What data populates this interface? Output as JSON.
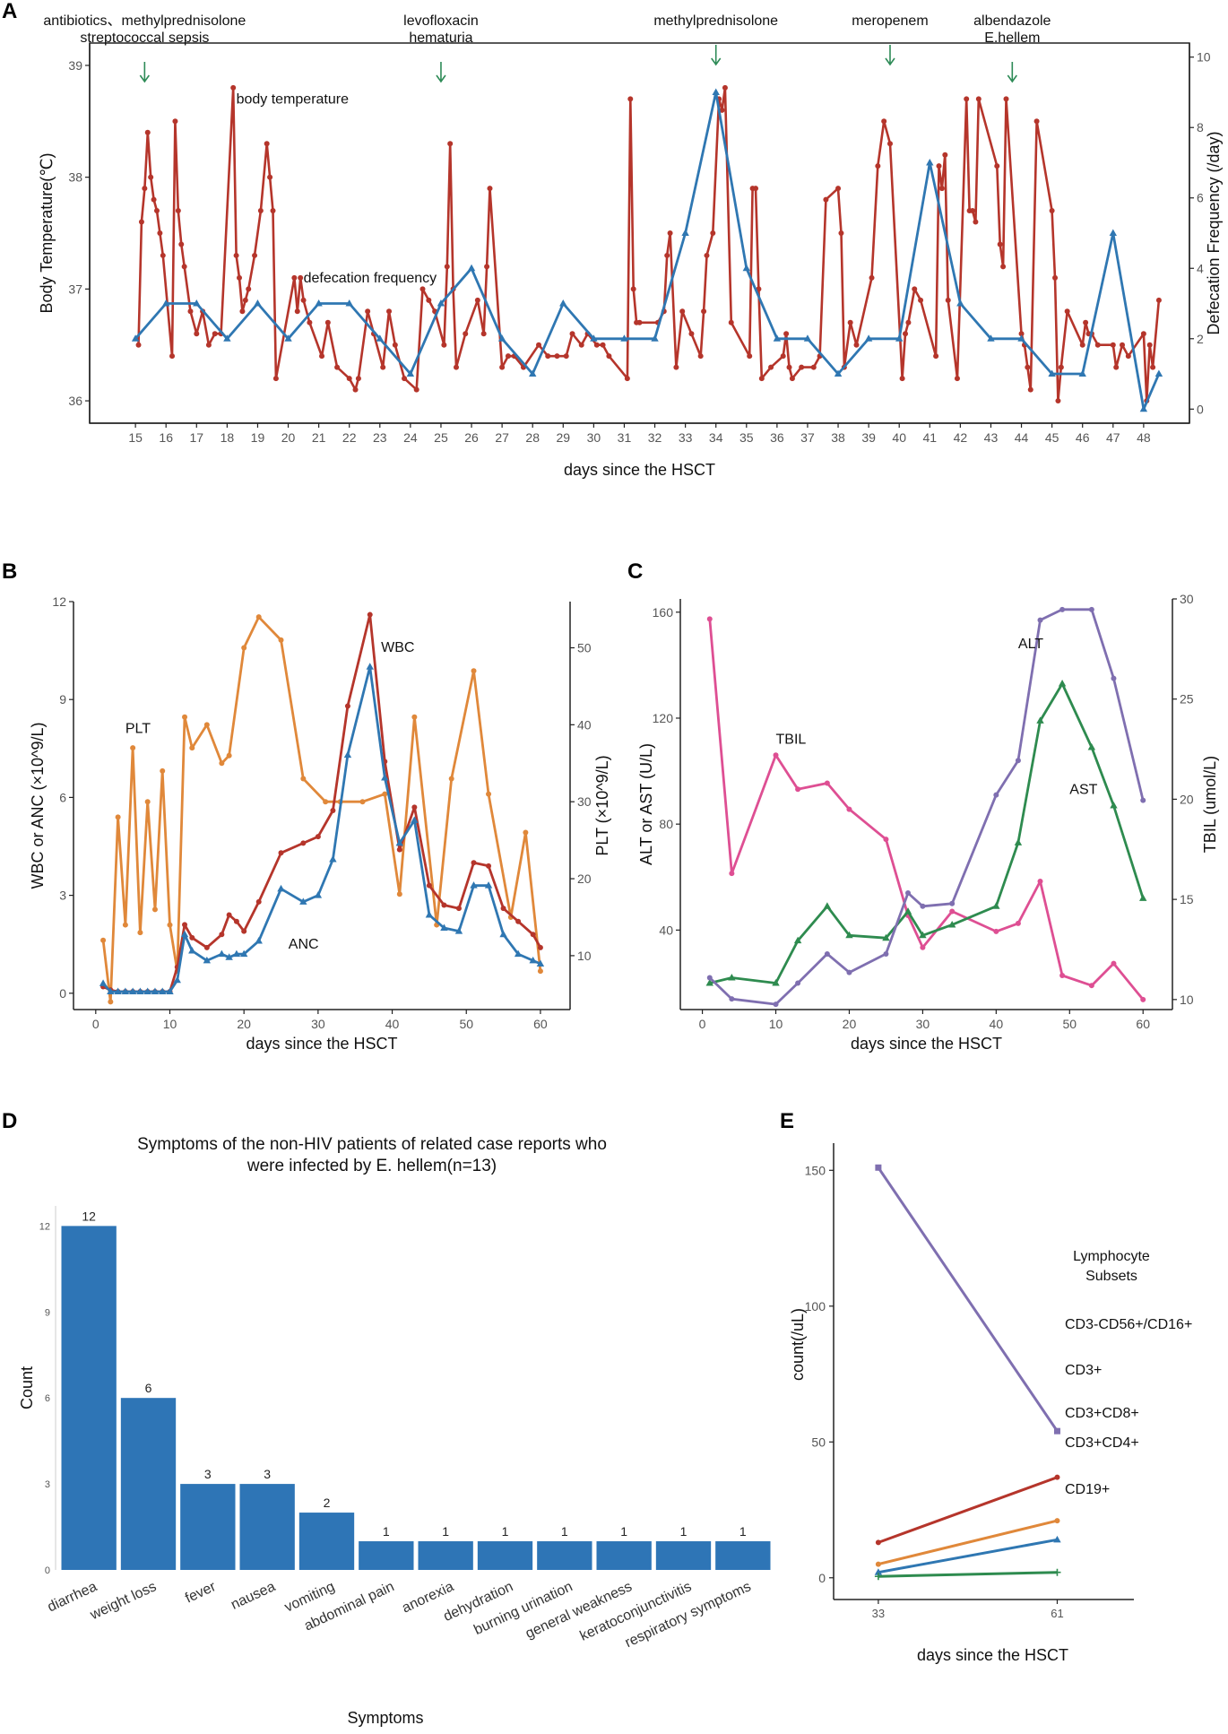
{
  "figure": {
    "colors": {
      "red": "#b5352b",
      "blue": "#2f77b2",
      "orange": "#e0883a",
      "pink": "#de4f93",
      "purple": "#7f6fb0",
      "green": "#2e8b4f",
      "bar": "#2e75b6"
    }
  },
  "chart_data": [
    {
      "panel": "A",
      "type": "line",
      "xlabel": "days since the HSCT",
      "ylabel": "Body Temperature(℃)",
      "y2label": "Defecation Frequency (/day)",
      "xlim": [
        13.5,
        49.5
      ],
      "ylim": [
        35.8,
        39.2
      ],
      "y2lim": [
        -0.4,
        10.4
      ],
      "xticks": [
        15,
        16,
        17,
        18,
        19,
        20,
        21,
        22,
        23,
        24,
        25,
        26,
        27,
        28,
        29,
        30,
        31,
        32,
        33,
        34,
        35,
        36,
        37,
        38,
        39,
        40,
        41,
        42,
        43,
        44,
        45,
        46,
        47,
        48
      ],
      "yticks": [
        36,
        37,
        38,
        39
      ],
      "y2ticks": [
        0,
        2,
        4,
        6,
        8,
        10
      ],
      "annotations": [
        {
          "lines": [
            "antibiotics、methylprednisolone",
            "streptococcal sepsis"
          ],
          "x": 15.3
        },
        {
          "lines": [
            "levofloxacin",
            "hematuria"
          ],
          "x": 25.0
        },
        {
          "lines": [
            "methylprednisolone"
          ],
          "x": 34.0
        },
        {
          "lines": [
            "meropenem"
          ],
          "x": 39.7
        },
        {
          "lines": [
            "albendazole",
            "E.hellem"
          ],
          "x": 43.7
        }
      ],
      "series": [
        {
          "name": "body temperature",
          "label_at": [
            18.3,
            38.7
          ],
          "axis": "left",
          "x": [
            15.1,
            15.2,
            15.3,
            15.4,
            15.5,
            15.6,
            15.7,
            15.8,
            15.9,
            16.2,
            16.3,
            16.4,
            16.5,
            16.6,
            16.8,
            17.0,
            17.2,
            17.4,
            17.6,
            17.8,
            18.2,
            18.3,
            18.4,
            18.5,
            18.6,
            18.7,
            18.9,
            19.1,
            19.3,
            19.4,
            19.5,
            19.6,
            20.2,
            20.3,
            20.4,
            20.5,
            20.7,
            21.1,
            21.3,
            21.6,
            22.0,
            22.2,
            22.3,
            22.6,
            22.8,
            23.1,
            23.3,
            23.5,
            23.8,
            24.2,
            24.4,
            24.6,
            24.8,
            25.1,
            25.2,
            25.3,
            25.4,
            25.5,
            25.8,
            26.2,
            26.4,
            26.5,
            26.6,
            27.0,
            27.2,
            27.4,
            27.7,
            28.2,
            28.5,
            28.8,
            29.1,
            29.3,
            29.6,
            29.8,
            30.1,
            30.3,
            30.5,
            31.1,
            31.2,
            31.3,
            31.4,
            31.5,
            32.1,
            32.3,
            32.4,
            32.5,
            32.7,
            32.9,
            33.2,
            33.5,
            33.6,
            33.7,
            33.9,
            34.1,
            34.2,
            34.3,
            34.5,
            35.1,
            35.2,
            35.3,
            35.4,
            35.5,
            35.8,
            36.2,
            36.3,
            36.4,
            36.5,
            36.8,
            37.2,
            37.4,
            37.6,
            38.0,
            38.1,
            38.2,
            38.4,
            38.6,
            39.1,
            39.3,
            39.5,
            39.7,
            40.1,
            40.2,
            40.3,
            40.5,
            40.7,
            41.2,
            41.3,
            41.4,
            41.5,
            41.6,
            41.9,
            42.2,
            42.3,
            42.4,
            42.5,
            42.6,
            43.2,
            43.3,
            43.4,
            43.5,
            44.0,
            44.1,
            44.2,
            44.3,
            44.5,
            45.0,
            45.1,
            45.2,
            45.3,
            45.5,
            46.0,
            46.1,
            46.2,
            46.3,
            46.5,
            47.0,
            47.1,
            47.3,
            47.5,
            48.0,
            48.1,
            48.2,
            48.3,
            48.5
          ],
          "y": [
            36.5,
            37.6,
            37.9,
            38.4,
            38.0,
            37.8,
            37.7,
            37.5,
            37.3,
            36.4,
            38.5,
            37.7,
            37.4,
            37.2,
            36.8,
            36.6,
            36.8,
            36.5,
            36.6,
            36.6,
            38.8,
            37.3,
            37.1,
            36.8,
            36.9,
            37.0,
            37.3,
            37.7,
            38.3,
            38.0,
            37.7,
            36.2,
            37.1,
            36.8,
            37.1,
            36.9,
            36.7,
            36.4,
            36.7,
            36.3,
            36.2,
            36.1,
            36.2,
            36.8,
            36.6,
            36.3,
            36.8,
            36.5,
            36.2,
            36.1,
            37.0,
            36.9,
            36.8,
            36.5,
            37.2,
            38.3,
            37.0,
            36.3,
            36.6,
            36.9,
            36.6,
            37.2,
            37.9,
            36.3,
            36.4,
            36.4,
            36.3,
            36.5,
            36.4,
            36.4,
            36.4,
            36.6,
            36.5,
            36.6,
            36.5,
            36.5,
            36.4,
            36.2,
            38.7,
            37.0,
            36.7,
            36.7,
            36.7,
            36.8,
            37.3,
            37.5,
            36.3,
            36.8,
            36.6,
            36.4,
            36.8,
            37.3,
            37.5,
            38.7,
            38.6,
            38.8,
            36.7,
            36.4,
            37.9,
            37.9,
            37.0,
            36.2,
            36.3,
            36.4,
            36.6,
            36.3,
            36.2,
            36.3,
            36.3,
            36.4,
            37.8,
            37.9,
            37.5,
            36.3,
            36.7,
            36.5,
            37.1,
            38.1,
            38.5,
            38.3,
            36.2,
            36.6,
            36.7,
            37.0,
            36.9,
            36.4,
            38.1,
            37.9,
            38.2,
            36.9,
            36.2,
            38.7,
            37.7,
            37.7,
            37.6,
            38.7,
            38.1,
            37.4,
            37.2,
            38.7,
            36.6,
            36.5,
            36.3,
            36.1,
            38.5,
            37.7,
            37.1,
            36.0,
            36.3,
            36.8,
            36.5,
            36.7,
            36.6,
            36.6,
            36.5,
            36.5,
            36.3,
            36.5,
            36.4,
            36.6,
            36.0,
            36.5,
            36.3,
            36.9
          ]
        },
        {
          "name": "defecation frequency",
          "label_at": [
            20.5,
            37.1
          ],
          "axis": "right",
          "x": [
            15,
            16,
            17,
            18,
            19,
            20,
            21,
            22,
            23,
            24,
            25,
            26,
            27,
            28,
            29,
            30,
            31,
            32,
            33,
            34,
            35,
            36,
            37,
            38,
            39,
            40,
            41,
            42,
            43,
            44,
            45,
            46,
            47,
            48,
            48.5
          ],
          "y": [
            2,
            3,
            3,
            2,
            3,
            2,
            3,
            3,
            2,
            1,
            3,
            4,
            2,
            1,
            3,
            2,
            2,
            2,
            5,
            9,
            4,
            2,
            2,
            1,
            2,
            2,
            7,
            3,
            2,
            2,
            1,
            1,
            5,
            0,
            1
          ]
        }
      ]
    },
    {
      "panel": "B",
      "type": "line",
      "xlabel": "days since the HSCT",
      "ylabel": "WBC or ANC (×10^9/L)",
      "y2label": "PLT (×10^9/L)",
      "xlim": [
        -3,
        64
      ],
      "ylim": [
        -0.5,
        12
      ],
      "y2lim": [
        3,
        56
      ],
      "xticks": [
        0,
        10,
        20,
        30,
        40,
        50,
        60
      ],
      "yticks": [
        0,
        3,
        6,
        9,
        12
      ],
      "y2ticks": [
        10,
        20,
        30,
        40,
        50
      ],
      "series": [
        {
          "name": "WBC",
          "label_at": [
            38.5,
            10.6
          ],
          "axis": "left",
          "x": [
            1,
            2,
            3,
            4,
            5,
            6,
            7,
            8,
            9,
            10,
            11,
            12,
            13,
            15,
            17,
            18,
            19,
            20,
            22,
            25,
            28,
            30,
            32,
            34,
            37,
            39,
            41,
            43,
            45,
            47,
            49,
            51,
            53,
            55,
            57,
            59,
            60
          ],
          "y": [
            0.2,
            0.1,
            0.05,
            0.05,
            0.05,
            0.05,
            0.05,
            0.05,
            0.05,
            0.05,
            0.8,
            2.1,
            1.7,
            1.4,
            1.8,
            2.4,
            2.2,
            1.9,
            2.8,
            4.3,
            4.6,
            4.8,
            5.6,
            8.8,
            11.6,
            7.1,
            4.4,
            5.7,
            3.3,
            2.7,
            2.6,
            4.0,
            3.9,
            2.6,
            2.2,
            1.8,
            1.4
          ]
        },
        {
          "name": "ANC",
          "label_at": [
            26,
            1.5
          ],
          "axis": "left",
          "x": [
            1,
            2,
            3,
            4,
            5,
            6,
            7,
            8,
            9,
            10,
            11,
            12,
            13,
            15,
            17,
            18,
            19,
            20,
            22,
            25,
            28,
            30,
            32,
            34,
            37,
            39,
            41,
            43,
            45,
            47,
            49,
            51,
            53,
            55,
            57,
            59,
            60
          ],
          "y": [
            0.3,
            0.05,
            0.05,
            0.05,
            0.05,
            0.05,
            0.05,
            0.05,
            0.05,
            0.05,
            0.4,
            1.8,
            1.3,
            1.0,
            1.2,
            1.1,
            1.2,
            1.2,
            1.6,
            3.2,
            2.8,
            3.0,
            4.1,
            7.3,
            10.0,
            6.6,
            4.6,
            5.3,
            2.4,
            2.0,
            1.9,
            3.3,
            3.3,
            1.8,
            1.2,
            1.0,
            0.9
          ]
        },
        {
          "name": "PLT",
          "label_at": [
            4,
            39.5
          ],
          "axis": "right",
          "x": [
            1,
            2,
            3,
            4,
            5,
            6,
            7,
            8,
            9,
            10,
            11,
            12,
            13,
            15,
            17,
            18,
            20,
            22,
            25,
            28,
            31,
            33,
            36,
            39,
            41,
            43,
            46,
            48,
            51,
            53,
            56,
            58,
            60
          ],
          "y": [
            12,
            4,
            28,
            14,
            37,
            13,
            30,
            16,
            34,
            14,
            8,
            41,
            37,
            40,
            35,
            36,
            50,
            54,
            51,
            33,
            30,
            30,
            30,
            31,
            18,
            41,
            14,
            33,
            47,
            31,
            15,
            26,
            8
          ]
        }
      ]
    },
    {
      "panel": "C",
      "type": "line",
      "xlabel": "days since the HSCT",
      "ylabel": "ALT or AST (U/L)",
      "y2label": "TBIL (umol/L)",
      "xlim": [
        -3,
        64
      ],
      "ylim": [
        10,
        165
      ],
      "y2lim": [
        9.5,
        30
      ],
      "xticks": [
        0,
        10,
        20,
        30,
        40,
        50,
        60
      ],
      "yticks": [
        40,
        80,
        120,
        160
      ],
      "y2ticks": [
        10,
        15,
        20,
        25,
        30
      ],
      "series": [
        {
          "name": "TBIL",
          "label_at": [
            10,
            23
          ],
          "axis": "right",
          "x": [
            1,
            4,
            10,
            13,
            17,
            20,
            25,
            28,
            30,
            34,
            40,
            43,
            46,
            49,
            53,
            56,
            60
          ],
          "y": [
            29.0,
            16.3,
            22.2,
            20.5,
            20.8,
            19.5,
            18.0,
            14.2,
            12.6,
            14.4,
            13.4,
            13.8,
            15.9,
            11.2,
            10.7,
            11.8,
            10.0
          ]
        },
        {
          "name": "ALT",
          "label_at": [
            43,
            148
          ],
          "axis": "left",
          "x": [
            1,
            4,
            10,
            13,
            17,
            20,
            25,
            28,
            30,
            34,
            40,
            43,
            46,
            49,
            53,
            56,
            60
          ],
          "y": [
            22,
            14,
            12,
            20,
            31,
            24,
            31,
            54,
            49,
            50,
            91,
            104,
            157,
            161,
            161,
            135,
            89
          ]
        },
        {
          "name": "AST",
          "label_at": [
            50,
            93
          ],
          "axis": "left",
          "x": [
            1,
            4,
            10,
            13,
            17,
            20,
            25,
            28,
            30,
            34,
            40,
            43,
            46,
            49,
            53,
            56,
            60
          ],
          "y": [
            20,
            22,
            20,
            36,
            49,
            38,
            37,
            47,
            38,
            42,
            49,
            73,
            119,
            133,
            109,
            87,
            52
          ]
        }
      ]
    },
    {
      "panel": "D",
      "type": "bar",
      "title": "Symptoms of the non-HIV patients of related case reports who were infected by E. hellem(n=13)",
      "title_lines": [
        "Symptoms of the non-HIV patients of related case reports who",
        "were infected by E. hellem(n=13)"
      ],
      "xlabel": "Symptoms",
      "ylabel": "Count",
      "ylim": [
        0,
        12.7
      ],
      "yticks": [
        0,
        3,
        6,
        9,
        12
      ],
      "categories": [
        "diarrhea",
        "weight loss",
        "fever",
        "nausea",
        "vomiting",
        "abdominal pain",
        "anorexia",
        "dehydration",
        "burning urination",
        "general weakness",
        "keratoconjunctivitis",
        "respiratory symptoms"
      ],
      "values": [
        12,
        6,
        3,
        3,
        2,
        1,
        1,
        1,
        1,
        1,
        1,
        1
      ]
    },
    {
      "panel": "E",
      "type": "line",
      "xlabel": "days since the HSCT",
      "ylabel": "count(/uL)",
      "legend_title_lines": [
        "Lymphocyte",
        "Subsets"
      ],
      "x": [
        33,
        61
      ],
      "xlim": [
        26,
        73
      ],
      "ylim": [
        -8,
        160
      ],
      "yticks": [
        0,
        50,
        100,
        150
      ],
      "series": [
        {
          "name": "CD3-CD56+/CD16+",
          "values": [
            151,
            54
          ]
        },
        {
          "name": "CD3+",
          "values": [
            13,
            37
          ]
        },
        {
          "name": "CD3+CD8+",
          "values": [
            5,
            21
          ]
        },
        {
          "name": "CD3+CD4+",
          "values": [
            2,
            14
          ]
        },
        {
          "name": "CD19+",
          "values": [
            0.5,
            2
          ]
        }
      ]
    }
  ]
}
